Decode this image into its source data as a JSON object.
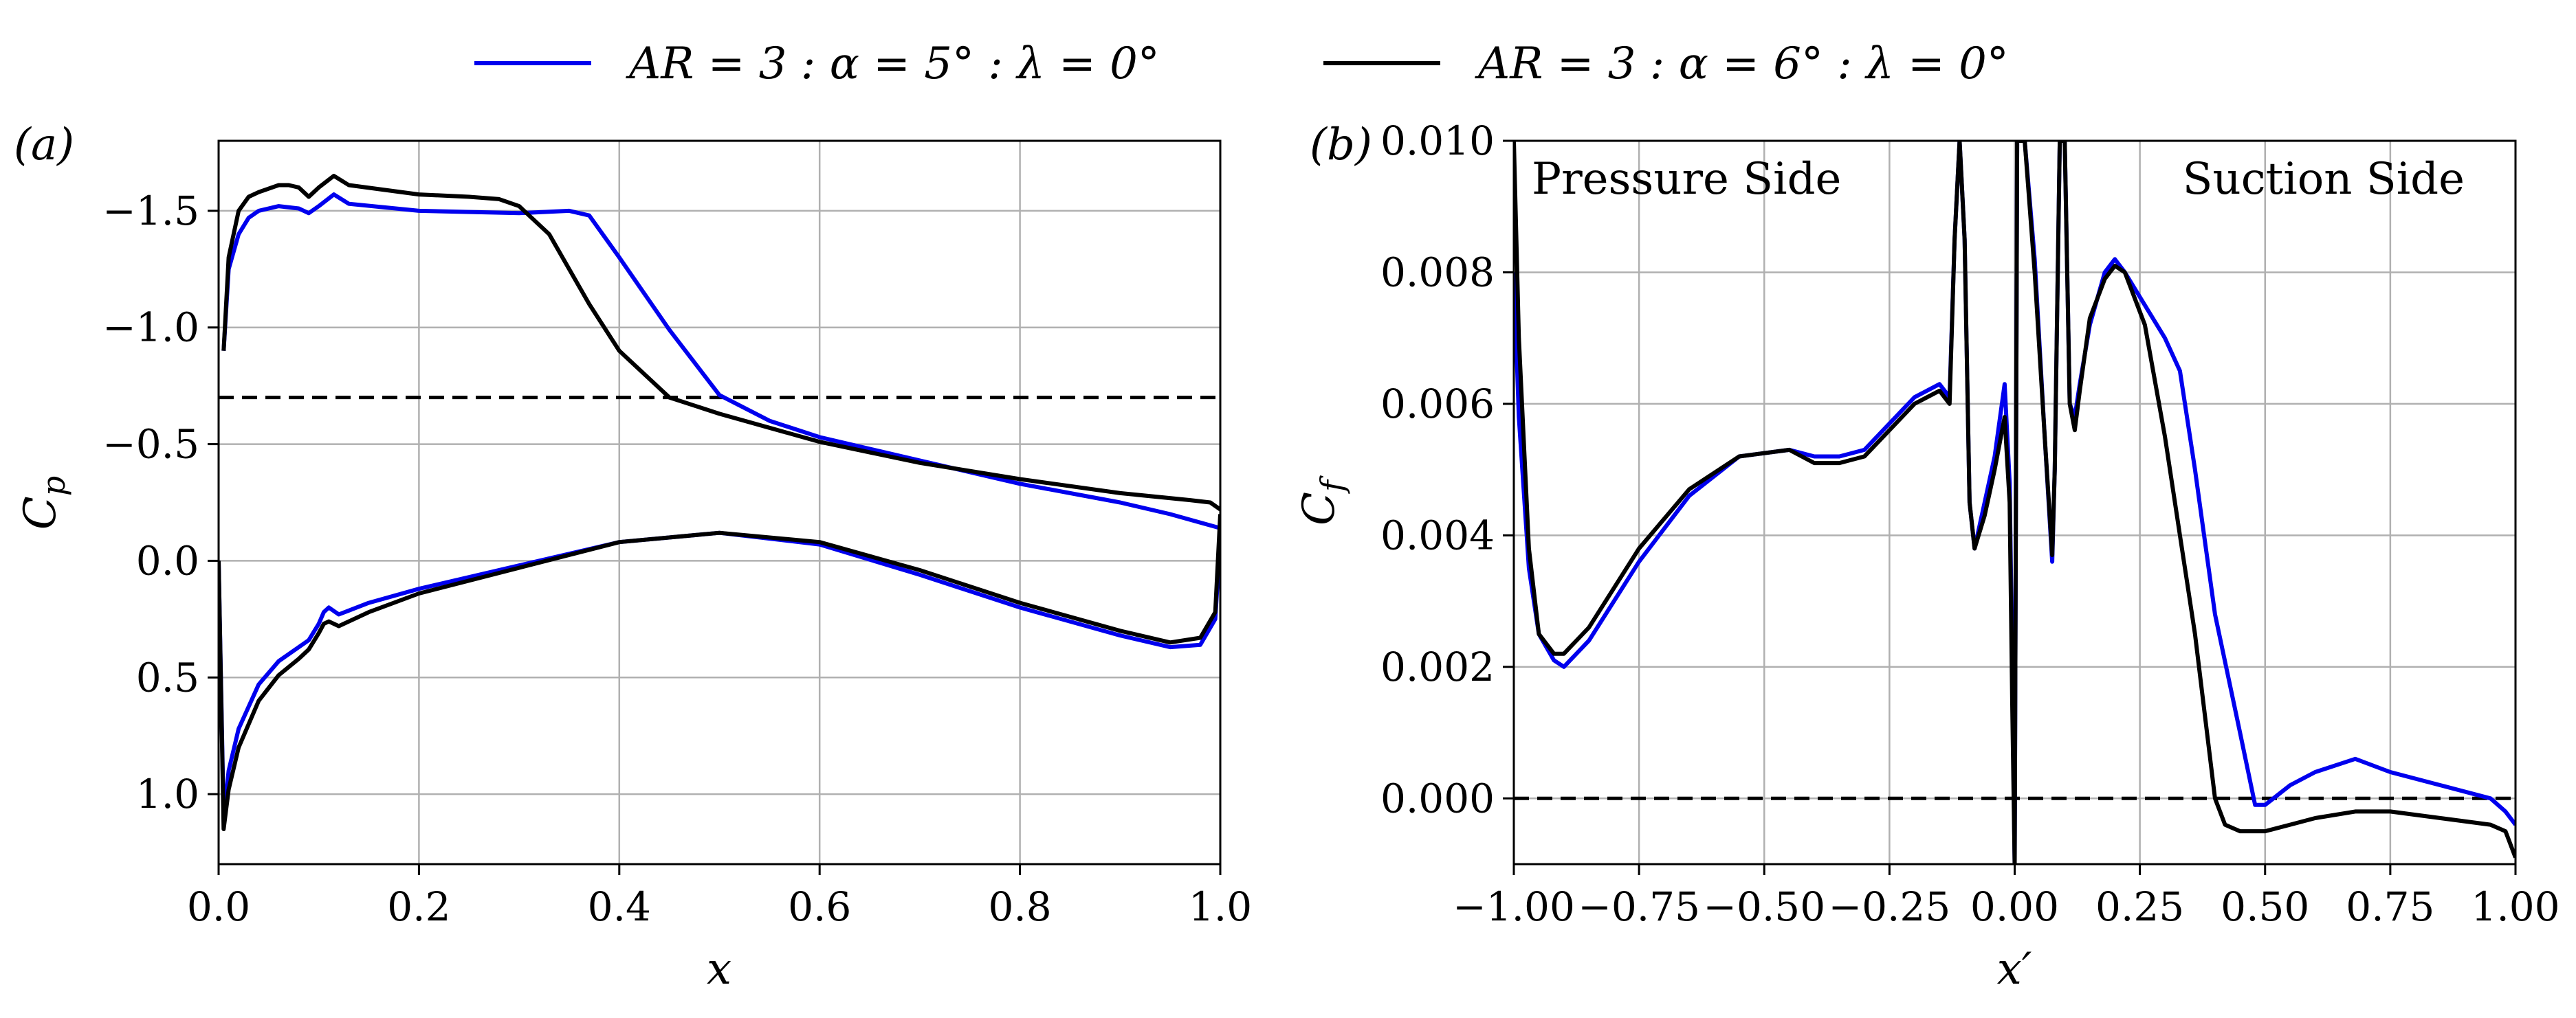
{
  "chart_data": [
    {
      "panel": "a",
      "type": "line",
      "panel_label": "(a)",
      "xlabel": "x",
      "ylabel": "C_p",
      "xlim": [
        0.0,
        1.0
      ],
      "ylim": [
        -1.8,
        1.3
      ],
      "y_inverted": true,
      "grid": true,
      "x_ticks": [
        0.0,
        0.2,
        0.4,
        0.6,
        0.8,
        1.0
      ],
      "x_tick_labels": [
        "0.0",
        "0.2",
        "0.4",
        "0.6",
        "0.8",
        "1.0"
      ],
      "y_ticks": [
        -1.5,
        -1.0,
        -0.5,
        0.0,
        0.5,
        1.0
      ],
      "y_tick_labels": [
        "−1.5",
        "−1.0",
        "−0.5",
        "0.0",
        "0.5",
        "1.0"
      ],
      "reference_line": {
        "y": -0.7,
        "style": "dashed",
        "color": "#000000"
      },
      "series": [
        {
          "name": "AR = 3 : α = 5° : λ = 0°",
          "color": "#0000ee",
          "segments": [
            {
              "x": [
                0.005,
                0.01,
                0.02,
                0.03,
                0.04,
                0.06,
                0.08,
                0.09,
                0.1,
                0.115,
                0.13,
                0.2,
                0.3,
                0.35,
                0.37,
                0.4,
                0.45,
                0.5,
                0.55,
                0.6,
                0.7,
                0.8,
                0.9,
                0.95,
                1.0
              ],
              "y": [
                -0.9,
                -1.25,
                -1.4,
                -1.47,
                -1.5,
                -1.52,
                -1.51,
                -1.49,
                -1.52,
                -1.57,
                -1.53,
                -1.5,
                -1.49,
                -1.5,
                -1.48,
                -1.3,
                -0.99,
                -0.71,
                -0.6,
                -0.53,
                -0.43,
                -0.33,
                -0.25,
                -0.2,
                -0.14
              ]
            },
            {
              "x": [
                0.0,
                0.005,
                0.01,
                0.02,
                0.04,
                0.06,
                0.08,
                0.09,
                0.1,
                0.105,
                0.11,
                0.12,
                0.15,
                0.2,
                0.3,
                0.4,
                0.5,
                0.6,
                0.7,
                0.8,
                0.9,
                0.95,
                0.98,
                0.995,
                1.0
              ],
              "y": [
                0.0,
                1.1,
                0.9,
                0.72,
                0.53,
                0.43,
                0.37,
                0.34,
                0.27,
                0.22,
                0.2,
                0.23,
                0.18,
                0.12,
                0.02,
                -0.08,
                -0.12,
                -0.07,
                0.06,
                0.2,
                0.32,
                0.37,
                0.36,
                0.25,
                -0.1
              ]
            }
          ]
        },
        {
          "name": "AR = 3 : α = 6° : λ = 0°",
          "color": "#000000",
          "segments": [
            {
              "x": [
                0.005,
                0.01,
                0.02,
                0.03,
                0.04,
                0.06,
                0.07,
                0.08,
                0.09,
                0.1,
                0.115,
                0.13,
                0.2,
                0.25,
                0.28,
                0.3,
                0.33,
                0.37,
                0.4,
                0.45,
                0.5,
                0.55,
                0.6,
                0.7,
                0.8,
                0.9,
                0.97,
                0.99,
                1.0
              ],
              "y": [
                -0.9,
                -1.3,
                -1.5,
                -1.56,
                -1.58,
                -1.61,
                -1.61,
                -1.6,
                -1.56,
                -1.6,
                -1.65,
                -1.61,
                -1.57,
                -1.56,
                -1.55,
                -1.52,
                -1.4,
                -1.1,
                -0.9,
                -0.7,
                -0.63,
                -0.57,
                -0.51,
                -0.42,
                -0.35,
                -0.29,
                -0.26,
                -0.25,
                -0.22
              ]
            },
            {
              "x": [
                0.0,
                0.005,
                0.01,
                0.02,
                0.04,
                0.06,
                0.08,
                0.09,
                0.1,
                0.105,
                0.11,
                0.12,
                0.15,
                0.2,
                0.3,
                0.4,
                0.5,
                0.6,
                0.7,
                0.8,
                0.9,
                0.95,
                0.98,
                0.995,
                1.0
              ],
              "y": [
                0.0,
                1.15,
                0.98,
                0.8,
                0.6,
                0.49,
                0.42,
                0.38,
                0.31,
                0.27,
                0.26,
                0.28,
                0.22,
                0.14,
                0.03,
                -0.08,
                -0.12,
                -0.08,
                0.04,
                0.18,
                0.3,
                0.35,
                0.33,
                0.22,
                -0.2
              ]
            }
          ]
        }
      ]
    },
    {
      "panel": "b",
      "type": "line",
      "panel_label": "(b)",
      "xlabel": "x′",
      "ylabel": "C_f",
      "xlim": [
        -1.0,
        1.0
      ],
      "ylim": [
        -0.001,
        0.01
      ],
      "grid": true,
      "x_ticks": [
        -1.0,
        -0.75,
        -0.5,
        -0.25,
        0.0,
        0.25,
        0.5,
        0.75,
        1.0
      ],
      "x_tick_labels": [
        "−1.00",
        "−0.75",
        "−0.50",
        "−0.25",
        "0.00",
        "0.25",
        "0.50",
        "0.75",
        "1.00"
      ],
      "y_ticks": [
        0.0,
        0.002,
        0.004,
        0.006,
        0.008,
        0.01
      ],
      "y_tick_labels": [
        "0.000",
        "0.002",
        "0.004",
        "0.006",
        "0.008",
        "0.010"
      ],
      "reference_line": {
        "y": 0.0,
        "style": "dashed",
        "color": "#000000"
      },
      "annotations": [
        {
          "text": "Pressure Side",
          "position": "top-left"
        },
        {
          "text": "Suction Side",
          "position": "top-right"
        }
      ],
      "series": [
        {
          "name": "AR = 3 : α = 5° : λ = 0°",
          "color": "#0000ee",
          "x": [
            -1.0,
            -0.99,
            -0.97,
            -0.95,
            -0.92,
            -0.9,
            -0.85,
            -0.75,
            -0.65,
            -0.55,
            -0.45,
            -0.4,
            -0.35,
            -0.3,
            -0.25,
            -0.2,
            -0.15,
            -0.13,
            -0.12,
            -0.11,
            -0.1,
            -0.09,
            -0.08,
            -0.06,
            -0.04,
            -0.02,
            -0.01,
            -0.005,
            0.0,
            0.005,
            0.02,
            0.04,
            0.06,
            0.075,
            0.08,
            0.09,
            0.1,
            0.11,
            0.12,
            0.13,
            0.15,
            0.18,
            0.2,
            0.22,
            0.26,
            0.3,
            0.33,
            0.36,
            0.4,
            0.45,
            0.48,
            0.5,
            0.55,
            0.6,
            0.68,
            0.75,
            0.85,
            0.95,
            0.98,
            1.0
          ],
          "y": [
            0.008,
            0.0058,
            0.0035,
            0.0025,
            0.0021,
            0.002,
            0.0024,
            0.0036,
            0.0046,
            0.0052,
            0.0053,
            0.0052,
            0.0052,
            0.0053,
            0.0057,
            0.0061,
            0.0063,
            0.0061,
            0.0085,
            0.0105,
            0.0085,
            0.0045,
            0.0038,
            0.0045,
            0.0052,
            0.0063,
            0.0048,
            0.002,
            -0.001,
            0.0105,
            0.0105,
            0.0082,
            0.0055,
            0.0036,
            0.005,
            0.0105,
            0.0105,
            0.006,
            0.0058,
            0.0063,
            0.0072,
            0.008,
            0.0082,
            0.008,
            0.0075,
            0.007,
            0.0065,
            0.005,
            0.0028,
            0.001,
            -0.0001,
            -0.0001,
            0.0002,
            0.0004,
            0.0006,
            0.0004,
            0.0002,
            0.0,
            -0.0002,
            -0.0004
          ]
        },
        {
          "name": "AR = 3 : α = 6° : λ = 0°",
          "color": "#000000",
          "x": [
            -1.0,
            -0.99,
            -0.97,
            -0.95,
            -0.92,
            -0.9,
            -0.85,
            -0.75,
            -0.65,
            -0.55,
            -0.45,
            -0.4,
            -0.35,
            -0.3,
            -0.25,
            -0.2,
            -0.15,
            -0.13,
            -0.12,
            -0.11,
            -0.1,
            -0.09,
            -0.08,
            -0.06,
            -0.04,
            -0.02,
            -0.01,
            -0.005,
            0.0,
            0.005,
            0.02,
            0.04,
            0.06,
            0.075,
            0.08,
            0.09,
            0.1,
            0.11,
            0.12,
            0.13,
            0.15,
            0.18,
            0.2,
            0.22,
            0.26,
            0.3,
            0.33,
            0.36,
            0.4,
            0.42,
            0.45,
            0.5,
            0.55,
            0.6,
            0.68,
            0.75,
            0.85,
            0.95,
            0.98,
            1.0
          ],
          "y": [
            0.0105,
            0.007,
            0.0038,
            0.0025,
            0.0022,
            0.0022,
            0.0026,
            0.0038,
            0.0047,
            0.0052,
            0.0053,
            0.0051,
            0.0051,
            0.0052,
            0.0056,
            0.006,
            0.0062,
            0.006,
            0.0085,
            0.0105,
            0.0085,
            0.0045,
            0.0038,
            0.0043,
            0.005,
            0.0058,
            0.0045,
            0.0015,
            -0.001,
            0.0105,
            0.0105,
            0.008,
            0.0055,
            0.0037,
            0.005,
            0.0105,
            0.0105,
            0.006,
            0.0056,
            0.0062,
            0.0073,
            0.0079,
            0.0081,
            0.008,
            0.0072,
            0.0055,
            0.004,
            0.0025,
            0.0,
            -0.0004,
            -0.0005,
            -0.0005,
            -0.0004,
            -0.0003,
            -0.0002,
            -0.0002,
            -0.0003,
            -0.0004,
            -0.0005,
            -0.0009
          ]
        }
      ]
    }
  ],
  "legend": {
    "position": "top-center",
    "entries": [
      {
        "label": "AR = 3 : α = 5° : λ = 0°",
        "color": "#0000ee"
      },
      {
        "label": "AR = 3 : α = 6° : λ = 0°",
        "color": "#000000"
      }
    ]
  }
}
